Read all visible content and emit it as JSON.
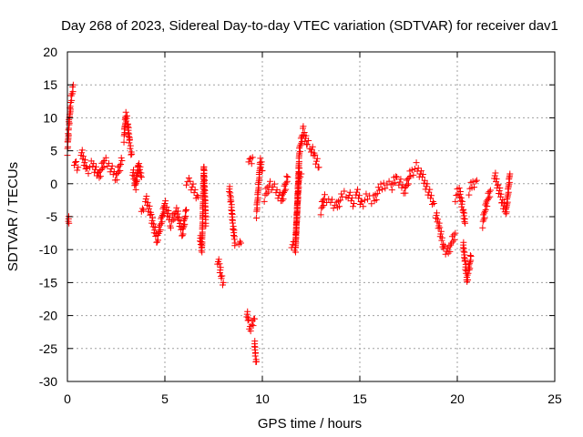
{
  "chart_data": {
    "type": "scatter",
    "title": "Day 268 of 2023, Sidereal Day-to-day VTEC variation (SDTVAR) for receiver dav1",
    "xlabel": "GPS time / hours",
    "ylabel": "SDTVAR / TECUs",
    "xlim": [
      0,
      25
    ],
    "ylim": [
      -30,
      20
    ],
    "xticks": [
      0,
      5,
      10,
      15,
      20,
      25
    ],
    "yticks": [
      -30,
      -25,
      -20,
      -15,
      -10,
      -5,
      0,
      5,
      10,
      15,
      20
    ],
    "grid": true,
    "marker": "+",
    "color": "#ff0000",
    "series": [
      {
        "name": "dav1",
        "segments": [
          {
            "x": [
              0.0,
              0.02,
              0.05,
              0.08,
              0.12,
              0.16,
              0.2,
              0.25,
              0.3
            ],
            "y": [
              5,
              6,
              7.5,
              9,
              10.5,
              12,
              13,
              14,
              15
            ]
          },
          {
            "x": [
              0.05,
              0.08
            ],
            "y": [
              -5,
              -6
            ]
          },
          {
            "x": [
              0.35,
              0.45,
              0.55
            ],
            "y": [
              3.5,
              3,
              2.5
            ]
          },
          {
            "x": [
              0.7,
              1.0,
              1.3,
              1.6,
              1.9,
              2.2,
              2.5,
              2.8
            ],
            "y": [
              5,
              2,
              3,
              1,
              3.5,
              2.5,
              1,
              3.5
            ]
          },
          {
            "x": [
              2.9,
              3.0,
              3.1,
              3.2,
              3.3
            ],
            "y": [
              7,
              10.5,
              9,
              6,
              4.5
            ]
          },
          {
            "x": [
              3.35,
              3.5,
              3.65,
              3.8
            ],
            "y": [
              2,
              -0.5,
              3,
              1
            ]
          },
          {
            "x": [
              3.8,
              3.9
            ],
            "y": [
              -3.5,
              -4
            ]
          },
          {
            "x": [
              4.0,
              4.3,
              4.6,
              4.8,
              5.0,
              5.3,
              5.6,
              5.9,
              6.1
            ],
            "y": [
              -2,
              -5,
              -8.5,
              -6,
              -3,
              -6,
              -4,
              -7.5,
              -4
            ]
          },
          {
            "x": [
              6.1,
              6.3,
              6.5,
              6.7
            ],
            "y": [
              0.5,
              0,
              -1,
              -2
            ]
          },
          {
            "x": [
              6.8,
              6.9,
              7.0,
              7.1
            ],
            "y": [
              -8,
              -10,
              2.5,
              -6
            ]
          },
          {
            "x": [
              7.7,
              7.8,
              7.9,
              8.0
            ],
            "y": [
              -11.5,
              -12.5,
              -14,
              -15
            ]
          },
          {
            "x": [
              8.3,
              8.4,
              8.5,
              8.6
            ],
            "y": [
              -0.5,
              -3,
              -6.5,
              -9
            ]
          },
          {
            "x": [
              8.8,
              8.9
            ],
            "y": [
              -8.5,
              -9
            ]
          },
          {
            "x": [
              9.2,
              9.3,
              9.4,
              9.5,
              9.6
            ],
            "y": [
              -19.5,
              -21,
              -22,
              -21.5,
              -20.5
            ]
          },
          {
            "x": [
              9.6,
              9.65,
              9.7
            ],
            "y": [
              -24,
              -26,
              -27
            ]
          },
          {
            "x": [
              9.3,
              9.4,
              9.5
            ],
            "y": [
              4,
              3.5,
              4
            ]
          },
          {
            "x": [
              9.7,
              9.9,
              10.0
            ],
            "y": [
              -4.5,
              3.5,
              2
            ]
          },
          {
            "x": [
              10.1,
              10.4,
              10.7,
              11.0,
              11.3
            ],
            "y": [
              -2,
              0,
              -1,
              -2.5,
              1
            ]
          },
          {
            "x": [
              11.5,
              11.7,
              11.9,
              12.1,
              12.3,
              12.5,
              12.7,
              12.9
            ],
            "y": [
              -9,
              -10,
              5,
              8,
              6,
              5.5,
              4,
              2.5
            ]
          },
          {
            "x": [
              11.7,
              11.9,
              12.0
            ],
            "y": [
              -9,
              2,
              1.5
            ]
          },
          {
            "x": [
              13.0,
              13.2,
              13.5,
              13.8,
              14.1,
              14.4,
              14.7
            ],
            "y": [
              -4,
              -2,
              -2.5,
              -3.5,
              -2,
              -1.5,
              -3
            ]
          },
          {
            "x": [
              14.8,
              15.1,
              15.4,
              15.7,
              16.0,
              16.3,
              16.6,
              16.9
            ],
            "y": [
              -1,
              -3,
              -2,
              -2.5,
              -1,
              0,
              -0.5,
              1
            ]
          },
          {
            "x": [
              17.0,
              17.3,
              17.6,
              17.9,
              18.2,
              18.5,
              18.8
            ],
            "y": [
              0.5,
              -1,
              1.5,
              2.5,
              1,
              -1,
              -3
            ]
          },
          {
            "x": [
              18.9,
              19.1,
              19.3,
              19.5,
              19.7,
              19.9
            ],
            "y": [
              -4.5,
              -7,
              -9.5,
              -10.5,
              -9,
              -7.5
            ]
          },
          {
            "x": [
              19.9,
              20.1,
              20.3,
              20.4
            ],
            "y": [
              -2,
              -1,
              -4,
              -6
            ]
          },
          {
            "x": [
              20.3,
              20.4,
              20.5,
              20.6,
              20.7
            ],
            "y": [
              -9,
              -12,
              -14.5,
              -13,
              -11
            ]
          },
          {
            "x": [
              20.6,
              20.8,
              21.0
            ],
            "y": [
              -1,
              0,
              0.5
            ]
          },
          {
            "x": [
              21.3,
              21.5,
              21.7
            ],
            "y": [
              -6,
              -3,
              -1
            ]
          },
          {
            "x": [
              21.9,
              22.1,
              22.3,
              22.5,
              22.7
            ],
            "y": [
              1.5,
              -0.5,
              -2.5,
              -4.5,
              1.5
            ]
          }
        ]
      }
    ]
  }
}
